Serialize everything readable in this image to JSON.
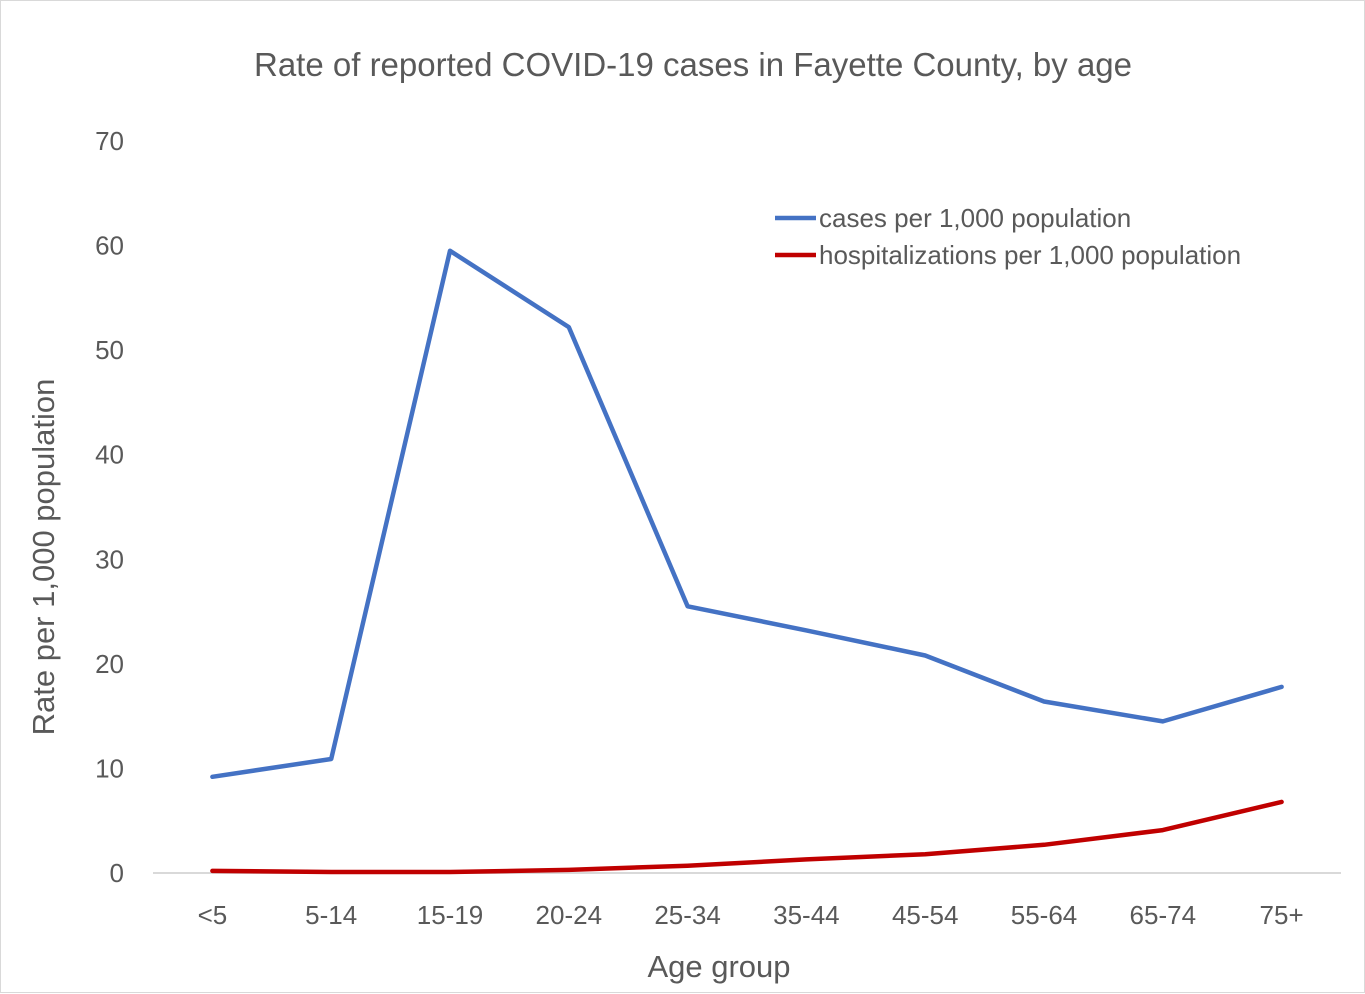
{
  "colors": {
    "cases": "#4472C4",
    "hospitalizations": "#C00000",
    "text": "#595959",
    "axis": "#d9d9d9"
  },
  "chart_data": {
    "type": "line",
    "title": "Rate of reported COVID-19 cases in Fayette County, by age",
    "xlabel": "Age group",
    "ylabel": "Rate per 1,000 population",
    "ylim": [
      0,
      70
    ],
    "yticks": [
      "0",
      "10",
      "20",
      "30",
      "40",
      "50",
      "60",
      "70"
    ],
    "grid": false,
    "legend_position": "top-right",
    "categories": [
      "<5",
      "5-14",
      "15-19",
      "20-24",
      "25-34",
      "35-44",
      "45-54",
      "55-64",
      "65-74",
      "75+"
    ],
    "series": [
      {
        "name": "cases per 1,000 population",
        "color": "#4472C4",
        "values": [
          9.2,
          10.9,
          59.5,
          52.2,
          25.5,
          23.2,
          20.8,
          16.4,
          14.5,
          17.8
        ]
      },
      {
        "name": "hospitalizations per 1,000 population",
        "color": "#C00000",
        "values": [
          0.2,
          0.1,
          0.1,
          0.3,
          0.7,
          1.3,
          1.8,
          2.7,
          4.1,
          6.8
        ]
      }
    ]
  }
}
